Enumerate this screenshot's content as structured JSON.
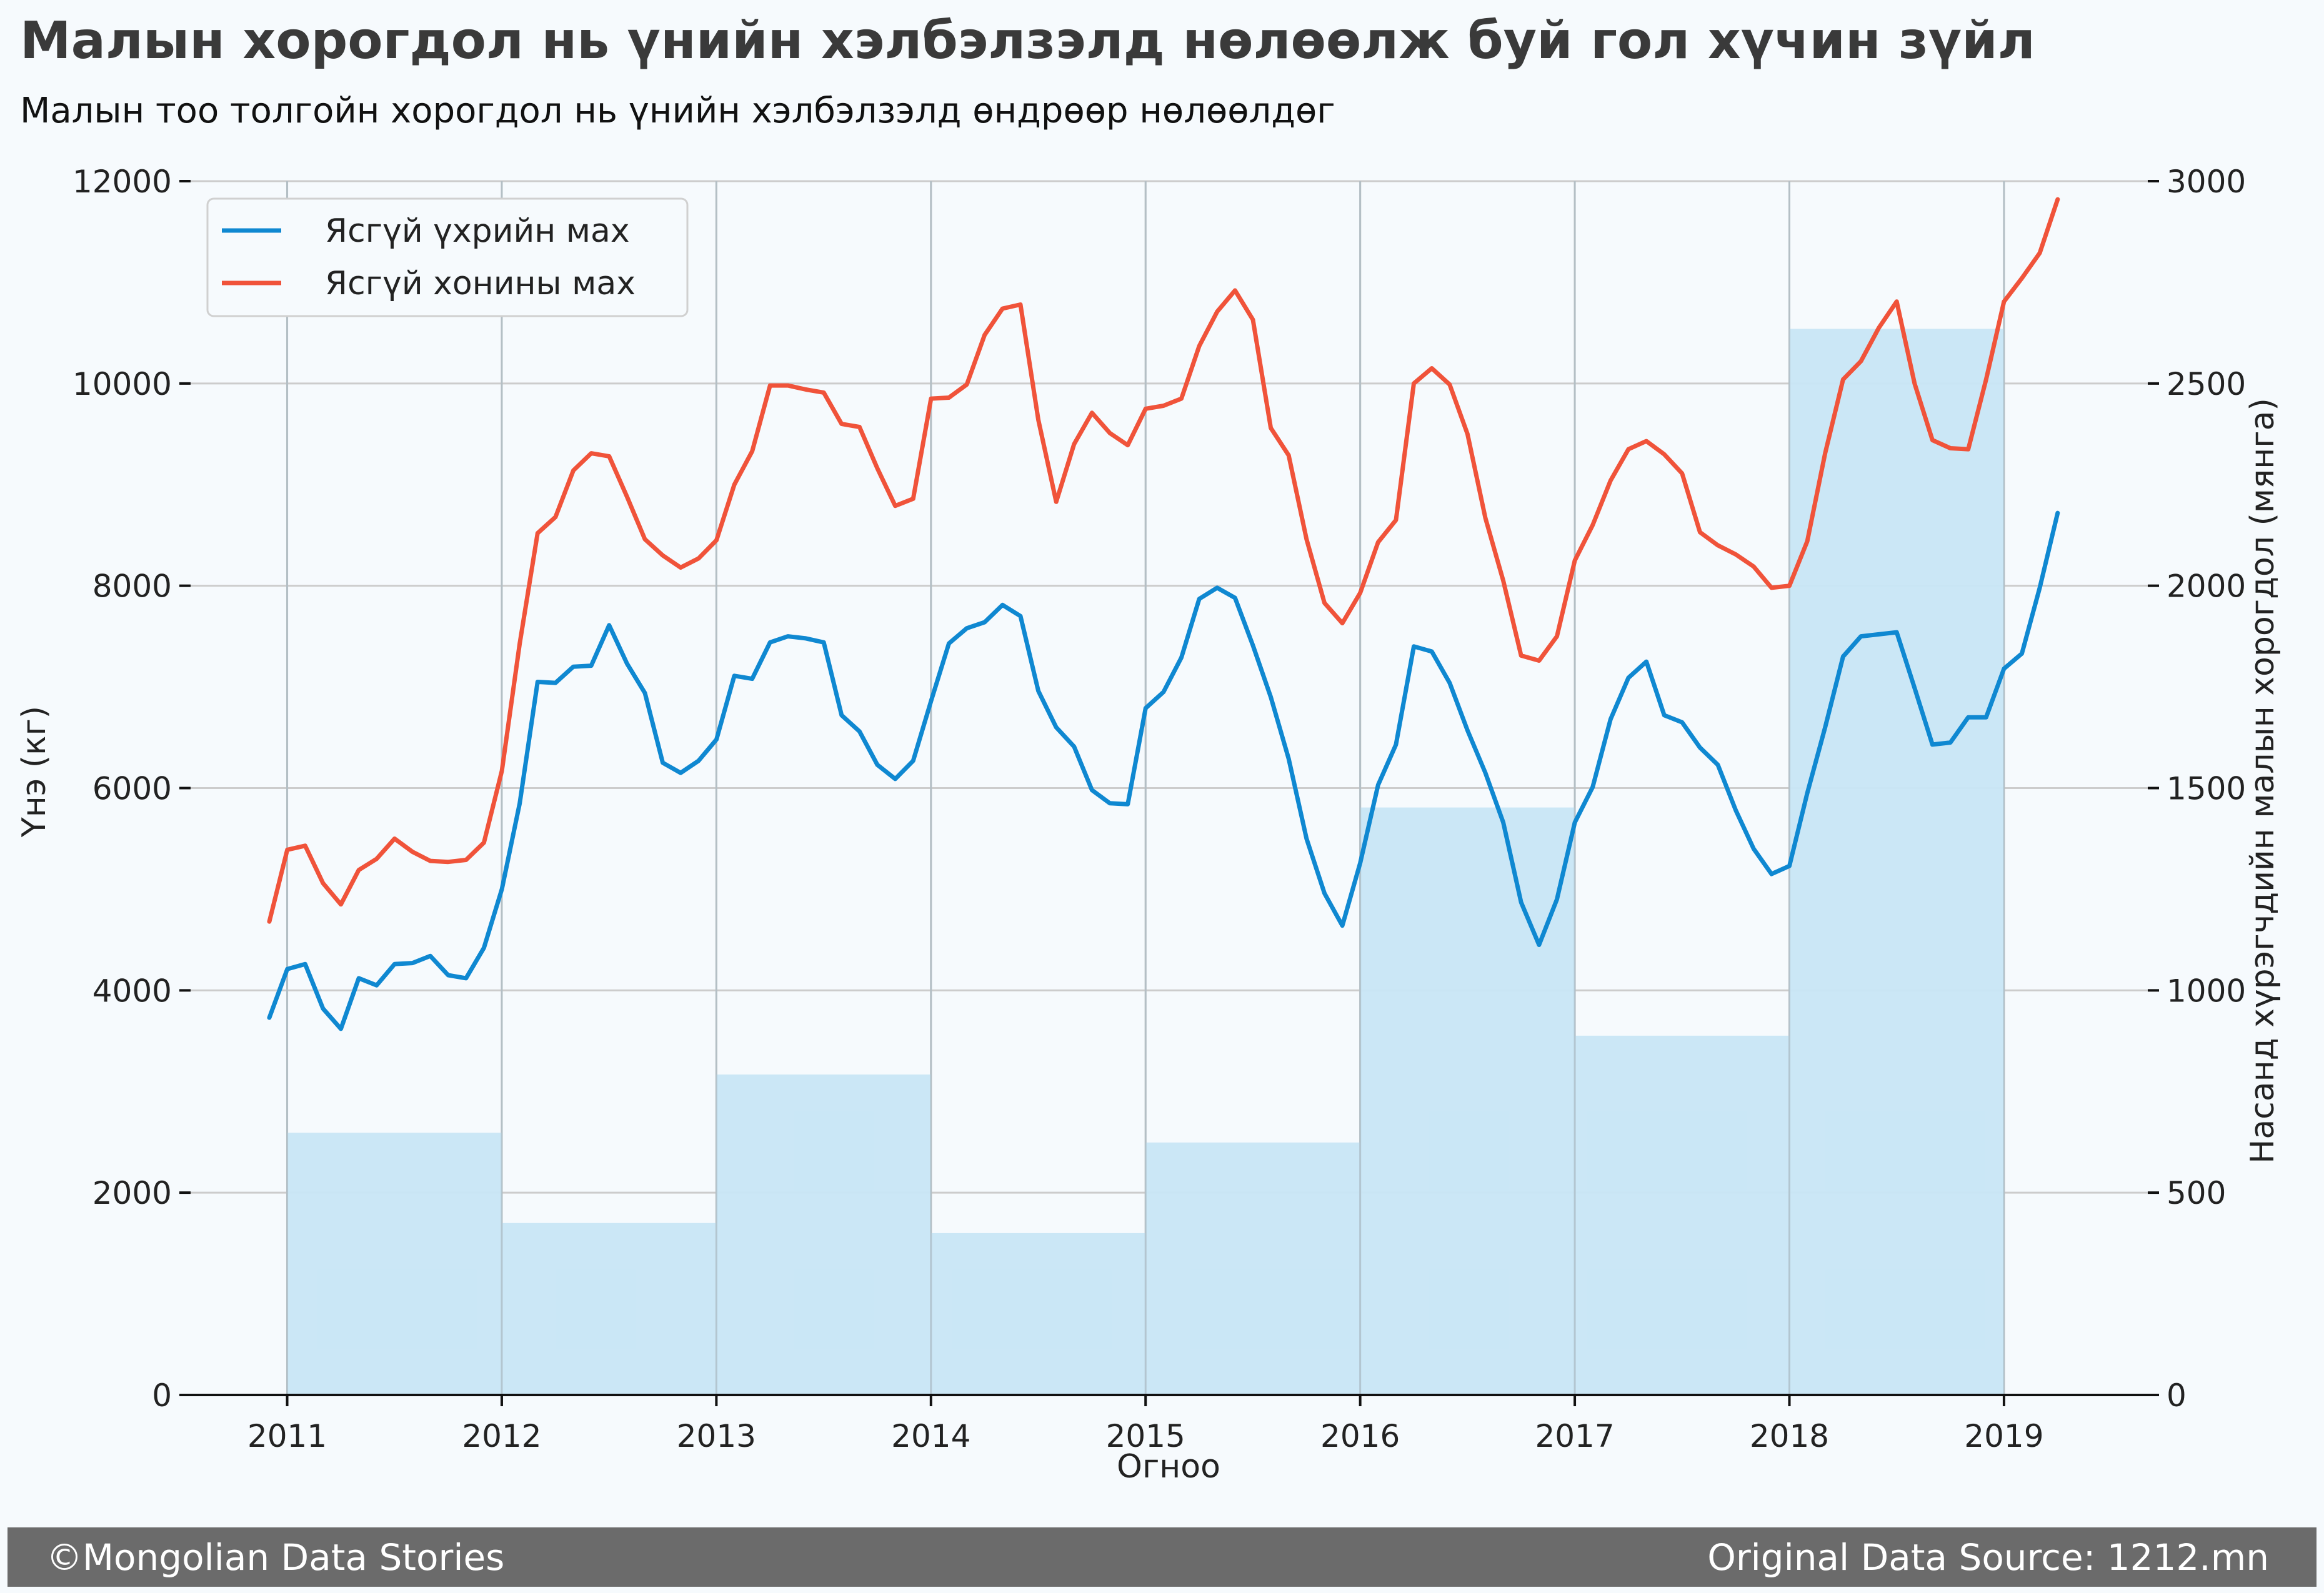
{
  "title": "Малын хорогдол нь үнийн хэлбэлзэлд нөлөөлж буй гол хүчин зүйл",
  "subtitle": "Малын тоо толгойн хорогдол нь үнийн хэлбэлзэлд өндрөөр нөлөөлдөг",
  "footer": {
    "left": "©Mongolian Data Stories",
    "right": "Original Data Source: 1212.mn"
  },
  "chart_data": {
    "type": "line",
    "xlabel": "Огноо",
    "ylabel": "Үнэ (кг)",
    "y2label": "Насанд хүрэгчдийн малын хорогдол (мянга)",
    "xlim": [
      2010.55,
      2019.67
    ],
    "ylim": [
      0,
      12000
    ],
    "y2lim": [
      0,
      3000
    ],
    "x_ticks": [
      2011,
      2012,
      2013,
      2014,
      2015,
      2016,
      2017,
      2018,
      2019
    ],
    "y_ticks": [
      0,
      2000,
      4000,
      6000,
      8000,
      10000,
      12000
    ],
    "y2_ticks": [
      0,
      500,
      1000,
      1500,
      2000,
      2500,
      3000
    ],
    "grid": true,
    "legend_position": "top-left",
    "colors": {
      "beef": "#0f88d1",
      "mutton": "#f0533a",
      "bars": "#c8e6f6"
    },
    "bars": {
      "x_start": [
        2011,
        2012,
        2013,
        2014,
        2015,
        2016,
        2017,
        2018
      ],
      "x_end": [
        2012,
        2013,
        2014,
        2015,
        2016,
        2017,
        2018,
        2019
      ],
      "values": [
        648,
        425,
        792,
        400,
        624,
        1452,
        888,
        2635
      ]
    },
    "series": [
      {
        "name": "Ясгүй үхрийн мах",
        "x_start": 2010.917,
        "x_step": 0.08333,
        "values": [
          3730,
          4210,
          4260,
          3820,
          3620,
          4120,
          4050,
          4260,
          4270,
          4340,
          4150,
          4120,
          4420,
          5000,
          5850,
          7050,
          7040,
          7200,
          7210,
          7610,
          7230,
          6940,
          6250,
          6150,
          6270,
          6480,
          7110,
          7080,
          7440,
          7500,
          7480,
          7440,
          6720,
          6560,
          6230,
          6090,
          6270,
          6860,
          7430,
          7580,
          7640,
          7810,
          7700,
          6960,
          6600,
          6410,
          5980,
          5850,
          5840,
          6790,
          6950,
          7290,
          7870,
          7980,
          7880,
          7410,
          6900,
          6290,
          5500,
          4960,
          4640,
          5260,
          6030,
          6430,
          7400,
          7350,
          7040,
          6570,
          6150,
          5660,
          4870,
          4450,
          4900,
          5660,
          6010,
          6680,
          7090,
          7250,
          6720,
          6650,
          6400,
          6230,
          5780,
          5400,
          5150,
          5230,
          5950,
          6600,
          7300,
          7500,
          7520,
          7540,
          6990,
          6430,
          6450,
          6700,
          6700,
          7180,
          7330,
          7980,
          8720
        ]
      },
      {
        "name": "Ясгүй хонины мах",
        "x_start": 2010.917,
        "x_step": 0.08333,
        "values": [
          4680,
          5390,
          5430,
          5060,
          4850,
          5190,
          5300,
          5500,
          5370,
          5280,
          5270,
          5290,
          5460,
          6170,
          7430,
          8520,
          8680,
          9140,
          9310,
          9280,
          8880,
          8460,
          8300,
          8180,
          8270,
          8450,
          9000,
          9330,
          9980,
          9980,
          9940,
          9910,
          9600,
          9570,
          9160,
          8790,
          8860,
          9850,
          9860,
          9990,
          10480,
          10740,
          10780,
          9640,
          8830,
          9400,
          9710,
          9510,
          9390,
          9750,
          9780,
          9850,
          10370,
          10710,
          10920,
          10630,
          9560,
          9290,
          8460,
          7830,
          7630,
          7930,
          8430,
          8650,
          10000,
          10150,
          9990,
          9500,
          8670,
          8050,
          7310,
          7260,
          7500,
          8250,
          8600,
          9040,
          9350,
          9430,
          9300,
          9110,
          8530,
          8400,
          8310,
          8190,
          7980,
          8000,
          8440,
          9310,
          10040,
          10220,
          10550,
          10810,
          10000,
          9440,
          9360,
          9350,
          10040,
          10810,
          11040,
          11290,
          11820
        ]
      }
    ]
  }
}
